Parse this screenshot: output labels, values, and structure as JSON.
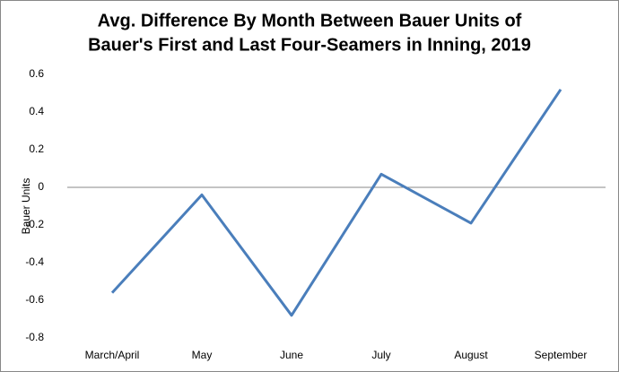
{
  "chart_data": {
    "type": "line",
    "title": [
      "Avg. Difference By Month Between Bauer Units of",
      "Bauer's First and Last Four-Seamers in Inning, 2019"
    ],
    "y_label": "Bauer Units",
    "categories": [
      "March/April",
      "May",
      "June",
      "July",
      "August",
      "September"
    ],
    "values": [
      -0.56,
      -0.04,
      -0.68,
      0.07,
      -0.19,
      0.52
    ],
    "color": "#4a7ebb",
    "ylim": [
      -0.8,
      0.6
    ],
    "yticks": [
      -0.8,
      -0.6,
      -0.4,
      -0.2,
      0,
      0.2,
      0.4,
      0.6
    ]
  }
}
